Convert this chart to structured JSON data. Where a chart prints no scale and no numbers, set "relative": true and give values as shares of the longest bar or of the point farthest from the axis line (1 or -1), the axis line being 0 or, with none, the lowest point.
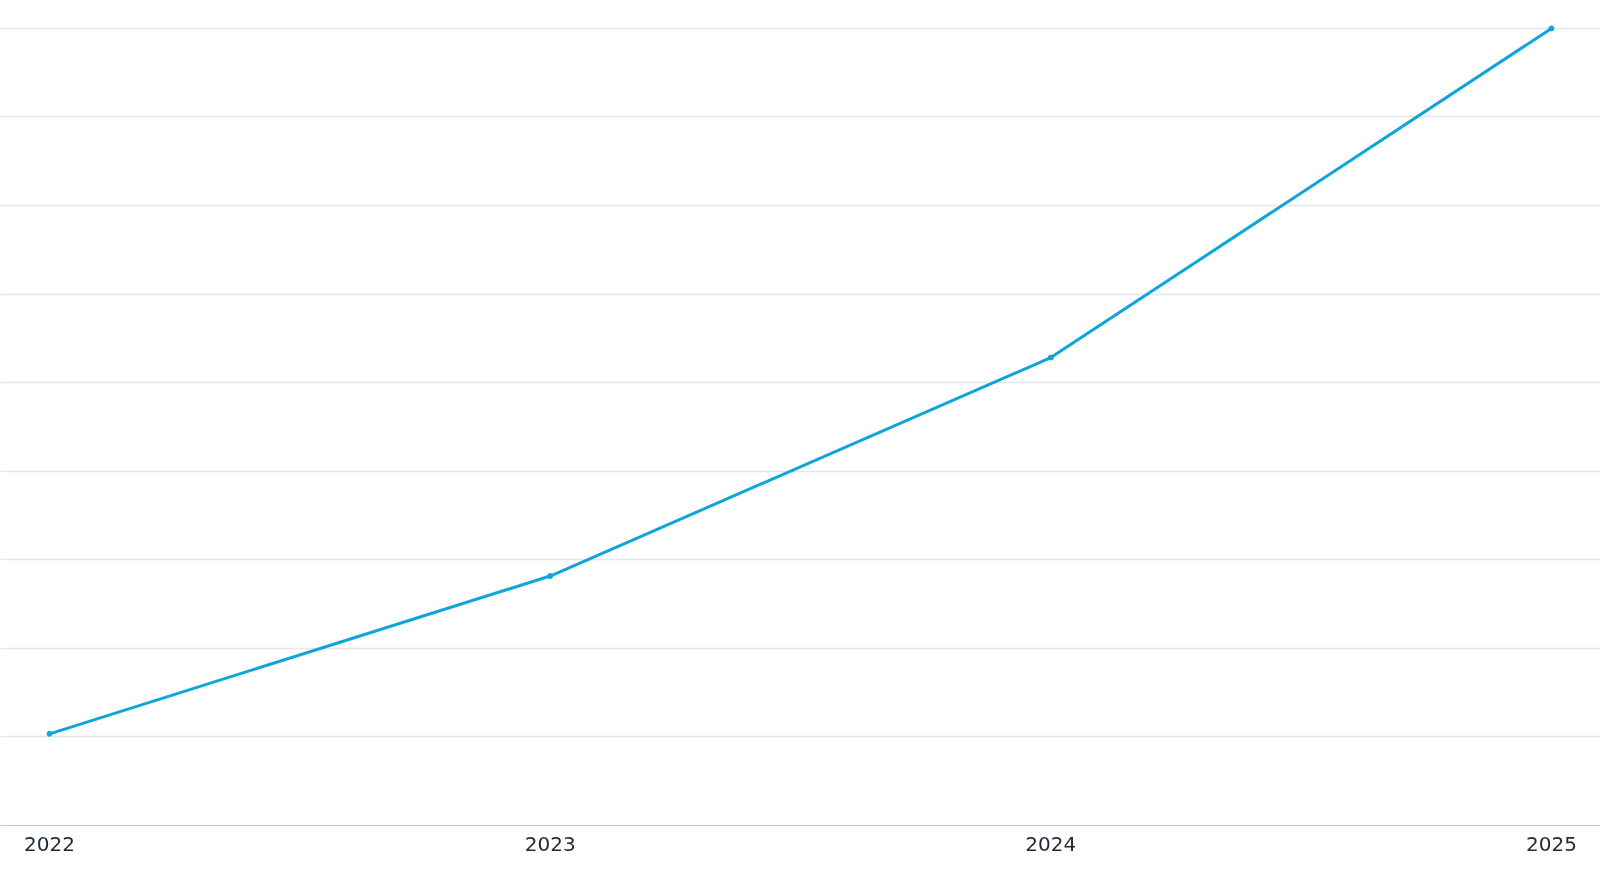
{
  "chart_data": {
    "type": "line",
    "categories": [
      "2022",
      "2023",
      "2024",
      "2025"
    ],
    "relative": true,
    "series": [
      {
        "color": "#0ea5d9",
        "values": [
          0.115,
          0.313,
          0.587,
          1.0
        ]
      }
    ],
    "grid": "y",
    "marker": "circle",
    "line_style": "solid",
    "tick_labels": "x"
  }
}
